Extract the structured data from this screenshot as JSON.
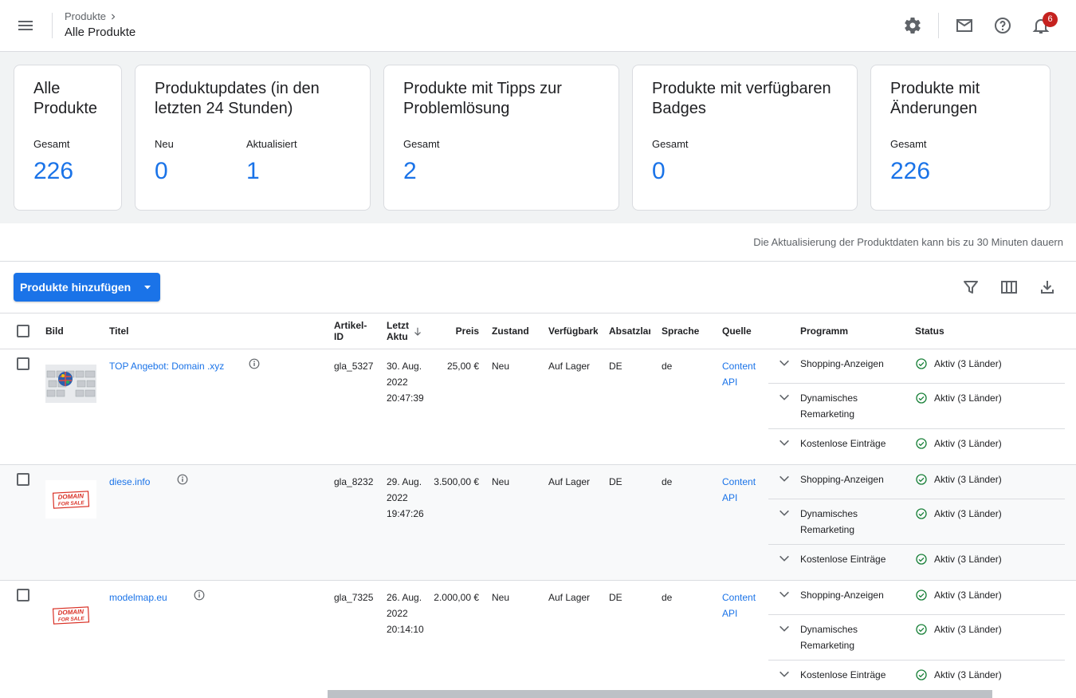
{
  "header": {
    "breadcrumb": "Produkte",
    "title": "Alle Produkte",
    "notification_count": "6"
  },
  "cards": [
    {
      "title": "Alle Produkte",
      "metrics": [
        {
          "label": "Gesamt",
          "value": "226"
        }
      ]
    },
    {
      "title": "Produktupdates (in den letzten 24 Stunden)",
      "metrics": [
        {
          "label": "Neu",
          "value": "0"
        },
        {
          "label": "Aktualisiert",
          "value": "1"
        }
      ]
    },
    {
      "title": "Produkte mit Tipps zur Problemlösung",
      "metrics": [
        {
          "label": "Gesamt",
          "value": "2"
        }
      ]
    },
    {
      "title": "Produkte mit verfügbaren Badges",
      "metrics": [
        {
          "label": "Gesamt",
          "value": "0"
        }
      ]
    },
    {
      "title": "Produkte mit Änderungen",
      "metrics": [
        {
          "label": "Gesamt",
          "value": "226"
        }
      ]
    }
  ],
  "info_text": "Die Aktualisierung der Produktdaten kann bis zu 30 Minuten dauern",
  "toolbar": {
    "add_label": "Produkte hinzufügen"
  },
  "columns": {
    "bild": "Bild",
    "titel": "Titel",
    "artikel_id": "Artikel-ID",
    "letzte": "Letzt Aktu",
    "preis": "Preis",
    "zustand": "Zustand",
    "verfuegbarkeit": "Verfügbark",
    "absatzland": "Absatzlar",
    "sprache": "Sprache",
    "quelle": "Quelle",
    "programm": "Programm",
    "status": "Status"
  },
  "rows": [
    {
      "title": "TOP Angebot: Domain .xyz",
      "id": "gla_5327",
      "date": "30. Aug. 2022 20:47:39",
      "price": "25,00 €",
      "condition": "Neu",
      "availability": "Auf Lager",
      "country": "DE",
      "language": "de",
      "source": "Content API",
      "image": "keyboard-globe-icon",
      "programs": [
        {
          "name": "Shopping-Anzeigen",
          "status": "Aktiv (3 Länder)"
        },
        {
          "name": "Dynamisches Remarketing",
          "status": "Aktiv (3 Länder)"
        },
        {
          "name": "Kostenlose Einträge",
          "status": "Aktiv (3 Länder)"
        }
      ]
    },
    {
      "title": "diese.info",
      "id": "gla_8232",
      "date": "29. Aug. 2022 19:47:26",
      "price": "3.500,00 €",
      "condition": "Neu",
      "availability": "Auf Lager",
      "country": "DE",
      "language": "de",
      "source": "Content API",
      "image": "domain-for-sale-stamp",
      "programs": [
        {
          "name": "Shopping-Anzeigen",
          "status": "Aktiv (3 Länder)"
        },
        {
          "name": "Dynamisches Remarketing",
          "status": "Aktiv (3 Länder)"
        },
        {
          "name": "Kostenlose Einträge",
          "status": "Aktiv (3 Länder)"
        }
      ]
    },
    {
      "title": "modelmap.eu",
      "id": "gla_7325",
      "date": "26. Aug. 2022 20:14:10",
      "price": "2.000,00 €",
      "condition": "Neu",
      "availability": "Auf Lager",
      "country": "DE",
      "language": "de",
      "source": "Content API",
      "image": "domain-for-sale-stamp",
      "programs": [
        {
          "name": "Shopping-Anzeigen",
          "status": "Aktiv (3 Länder)"
        },
        {
          "name": "Dynamisches Remarketing",
          "status": "Aktiv (3 Länder)"
        },
        {
          "name": "Kostenlose Einträge",
          "status": "Aktiv (3 Länder)"
        }
      ]
    }
  ],
  "colors": {
    "accent": "#1a73e8",
    "status_ok": "#188038",
    "badge": "#c5221f"
  },
  "stamp_text": {
    "line1": "DOMAIN",
    "line2": "FOR SALE"
  }
}
